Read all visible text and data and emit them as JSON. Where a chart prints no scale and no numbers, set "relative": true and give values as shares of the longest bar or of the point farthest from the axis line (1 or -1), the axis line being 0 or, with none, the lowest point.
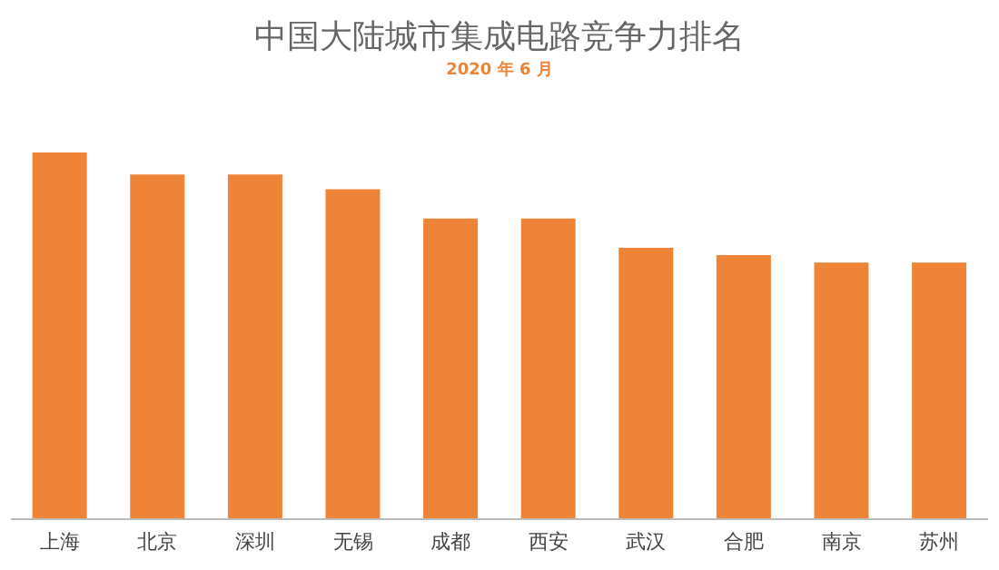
{
  "chart_data": {
    "type": "bar",
    "title": "中国大陆城市集成电路竞争力排名",
    "subtitle": "2020 年 6 月",
    "relative": true,
    "categories": [
      "上海",
      "北京",
      "深圳",
      "无锡",
      "成都",
      "西安",
      "武汉",
      "合肥",
      "南京",
      "苏州"
    ],
    "values": [
      1,
      0.94,
      0.94,
      0.9,
      0.82,
      0.82,
      0.74,
      0.72,
      0.7,
      0.7
    ],
    "color": "#ee8437",
    "grid": false,
    "legend": false
  }
}
